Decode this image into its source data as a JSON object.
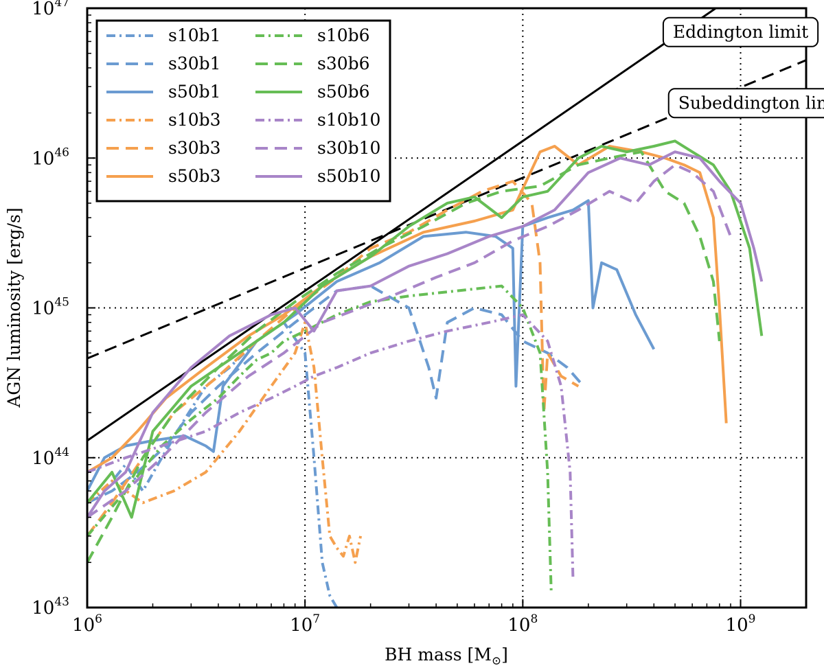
{
  "chart_data": {
    "type": "line",
    "xlabel": "BH mass [M",
    "xlabel_sub": "⊙",
    "xlabel_end": "]",
    "ylabel": "AGN luminosity [erg/s]",
    "xscale": "log",
    "yscale": "log",
    "xlim": [
      1000000,
      2000000000
    ],
    "ylim": [
      1e+43,
      1e+47
    ],
    "grid": "dotted",
    "x_ticks": [
      {
        "value": 1000000,
        "base": "10",
        "exp": "6"
      },
      {
        "value": 10000000,
        "base": "10",
        "exp": "7"
      },
      {
        "value": 100000000,
        "base": "10",
        "exp": "8"
      },
      {
        "value": 1000000000,
        "base": "10",
        "exp": "9"
      }
    ],
    "y_ticks": [
      {
        "value": 1e+43,
        "base": "10",
        "exp": "43"
      },
      {
        "value": 1e+44,
        "base": "10",
        "exp": "44"
      },
      {
        "value": 1e+45,
        "base": "10",
        "exp": "45"
      },
      {
        "value": 1e+46,
        "base": "10",
        "exp": "46"
      },
      {
        "value": 1e+47,
        "base": "10",
        "exp": "47"
      }
    ],
    "reference_lines": [
      {
        "name": "Eddington limit",
        "style": "solid",
        "color": "#000000",
        "x": [
          1000000,
          1200000000
        ],
        "y": [
          1.3e+44,
          1.56e+47
        ]
      },
      {
        "name": "Subeddington limit",
        "style": "dashed",
        "color": "#000000",
        "x": [
          1000000,
          2000000000
        ],
        "y": [
          4.6e+44,
          4.5e+46
        ]
      }
    ],
    "legend_position": "top-left",
    "series": [
      {
        "name": "s10b1",
        "color": "#6b9bd1",
        "style": "dashdot",
        "x": [
          1000000,
          1200000,
          1500000,
          1800000,
          2200000,
          2800000,
          3500000,
          4500000,
          6000000,
          8000000,
          10000000,
          11000000,
          12000000,
          13000000,
          14000000
        ],
        "y": [
          5e+43,
          6e+43,
          9e+43,
          6e+43,
          1e+44,
          1.8e+44,
          3e+44,
          4e+44,
          6e+44,
          8e+44,
          5e+44,
          1e+44,
          2e+43,
          1.2e+43,
          1e+43
        ]
      },
      {
        "name": "s30b1",
        "color": "#6b9bd1",
        "style": "dashed",
        "x": [
          1000000,
          1300000,
          1700000,
          2300000,
          3000000,
          4000000,
          6000000,
          9000000,
          14000000,
          20000000,
          30000000,
          37000000,
          40000000,
          45000000,
          60000000,
          80000000,
          100000000,
          130000000,
          160000000,
          190000000
        ],
        "y": [
          5e+43,
          6e+43,
          8e+43,
          1.2e+44,
          2e+44,
          3e+44,
          5e+44,
          8e+44,
          1.3e+45,
          1.4e+45,
          1e+45,
          4e+44,
          2.5e+44,
          8e+44,
          1e+45,
          9e+44,
          6e+44,
          5e+44,
          4e+44,
          3e+44
        ]
      },
      {
        "name": "s50b1",
        "color": "#6b9bd1",
        "style": "solid",
        "x": [
          1000000,
          1200000,
          1500000,
          2000000,
          2800000,
          3500000,
          3800000,
          4200000,
          6000000,
          9000000,
          14000000,
          22000000,
          35000000,
          55000000,
          75000000,
          90000000,
          93000000,
          100000000,
          130000000,
          170000000,
          200000000,
          210000000,
          230000000,
          270000000,
          330000000,
          400000000
        ],
        "y": [
          6e+43,
          1e+44,
          1.2e+44,
          1.3e+44,
          1.4e+44,
          1.2e+44,
          1.1e+44,
          3e+44,
          6e+44,
          9e+44,
          1.5e+45,
          2e+45,
          3e+45,
          3.2e+45,
          3e+45,
          2.5e+45,
          3e+44,
          3.5e+45,
          4e+45,
          4.5e+45,
          5.2e+45,
          1e+45,
          2e+45,
          1.8e+45,
          9e+44,
          5.3e+44
        ]
      },
      {
        "name": "s10b3",
        "color": "#f5a04e",
        "style": "dashdot",
        "x": [
          1000000,
          1300000,
          1800000,
          2500000,
          3500000,
          5000000,
          7000000,
          9000000,
          10000000,
          11000000,
          12000000,
          13000000,
          14000000,
          15000000,
          16000000,
          17000000,
          18000000
        ],
        "y": [
          5e+43,
          7e+43,
          5e+43,
          6e+43,
          8e+43,
          1.5e+44,
          3e+44,
          5e+44,
          8e+44,
          4e+44,
          1e+44,
          3e+43,
          2.5e+43,
          2.2e+43,
          3e+43,
          2e+43,
          3e+43
        ]
      },
      {
        "name": "s30b3",
        "color": "#f5a04e",
        "style": "dashed",
        "x": [
          1000000,
          1300000,
          1800000,
          2500000,
          4000000,
          6000000,
          9000000,
          14000000,
          20000000,
          30000000,
          45000000,
          65000000,
          90000000,
          110000000,
          120000000,
          125000000,
          130000000,
          150000000,
          180000000
        ],
        "y": [
          3e+43,
          5e+43,
          1e+44,
          2e+44,
          3.5e+44,
          6e+44,
          1e+45,
          1.6e+45,
          2.5e+45,
          3.2e+45,
          4.5e+45,
          6e+45,
          7e+45,
          5e+45,
          2e+45,
          2e+44,
          5e+44,
          3.5e+44,
          3e+44
        ]
      },
      {
        "name": "s50b3",
        "color": "#f5a04e",
        "style": "solid",
        "x": [
          1000000,
          1300000,
          1700000,
          2300000,
          3500000,
          5500000,
          8000000,
          12000000,
          20000000,
          35000000,
          60000000,
          90000000,
          120000000,
          140000000,
          180000000,
          250000000,
          350000000,
          450000000,
          550000000,
          650000000,
          750000000,
          800000000,
          860000000
        ],
        "y": [
          8e+43,
          1e+44,
          1.5e+44,
          2.5e+44,
          4e+44,
          6.5e+44,
          9e+44,
          1.4e+45,
          2.2e+45,
          3.2e+45,
          3.8e+45,
          4.5e+45,
          1.1e+46,
          1.2e+46,
          9e+45,
          1.2e+46,
          1.1e+46,
          1e+46,
          9e+45,
          8e+45,
          4e+45,
          1e+45,
          1.7e+44
        ]
      },
      {
        "name": "s10b6",
        "color": "#66bd55",
        "style": "dashdot",
        "x": [
          1000000,
          1500000,
          2200000,
          3000000,
          4000000,
          5000000,
          6000000,
          7000000,
          8000000,
          10000000,
          14000000,
          20000000,
          30000000,
          50000000,
          80000000,
          100000000,
          120000000,
          130000000,
          135000000
        ],
        "y": [
          3e+43,
          6e+43,
          1.2e+44,
          1.8e+44,
          2.5e+44,
          3.5e+44,
          4.5e+44,
          5e+44,
          6e+44,
          7e+44,
          9e+44,
          1.1e+45,
          1.2e+45,
          1.3e+45,
          1.4e+45,
          1e+45,
          5e+44,
          8e+43,
          1.3e+43
        ]
      },
      {
        "name": "s30b6",
        "color": "#66bd55",
        "style": "dashed",
        "x": [
          1000000,
          1300000,
          1800000,
          2500000,
          4000000,
          6000000,
          9000000,
          14000000,
          22000000,
          35000000,
          55000000,
          80000000,
          120000000,
          180000000,
          250000000,
          350000000,
          450000000,
          550000000,
          650000000,
          750000000,
          800000000
        ],
        "y": [
          2e+43,
          4e+43,
          1e+44,
          2e+44,
          4e+44,
          7e+44,
          1.1e+45,
          1.7e+45,
          2.5e+45,
          3.5e+45,
          5e+45,
          6e+45,
          6.5e+45,
          9e+45,
          1e+46,
          1.1e+46,
          6e+45,
          5e+45,
          3e+45,
          1.5e+45,
          6e+44
        ]
      },
      {
        "name": "s50b6",
        "color": "#66bd55",
        "style": "solid",
        "x": [
          1000000,
          1300000,
          1600000,
          2000000,
          3000000,
          5000000,
          8000000,
          12000000,
          20000000,
          30000000,
          45000000,
          60000000,
          80000000,
          100000000,
          130000000,
          180000000,
          230000000,
          300000000,
          400000000,
          500000000,
          600000000,
          750000000,
          900000000,
          1100000000,
          1250000000
        ],
        "y": [
          5e+43,
          8e+43,
          4e+43,
          1.5e+44,
          3e+44,
          5e+44,
          8e+44,
          1.4e+45,
          2.2e+45,
          3.5e+45,
          5e+45,
          5.5e+45,
          4e+45,
          5.5e+45,
          6e+45,
          1e+46,
          1.2e+46,
          1.1e+46,
          1.2e+46,
          1.3e+46,
          1.1e+46,
          9e+45,
          6e+45,
          2.5e+45,
          6.5e+44
        ]
      },
      {
        "name": "s10b10",
        "color": "#a885c8",
        "style": "dashdot",
        "x": [
          1000000,
          1500000,
          2200000,
          3500000,
          5000000,
          7000000,
          9000000,
          11000000,
          14000000,
          20000000,
          30000000,
          45000000,
          70000000,
          100000000,
          130000000,
          150000000,
          165000000,
          170000000
        ],
        "y": [
          8e+43,
          1e+44,
          1.2e+44,
          1.5e+44,
          2e+44,
          2.5e+44,
          3e+44,
          3.5e+44,
          4e+44,
          5e+44,
          6e+44,
          7e+44,
          8e+44,
          9e+44,
          6e+44,
          3e+44,
          8e+43,
          1.6e+43
        ]
      },
      {
        "name": "s30b10",
        "color": "#a885c8",
        "style": "dashed",
        "x": [
          1000000,
          1500000,
          2200000,
          3500000,
          5500000,
          8000000,
          12000000,
          18000000,
          25000000,
          40000000,
          60000000,
          90000000,
          130000000,
          180000000,
          250000000,
          330000000,
          400000000,
          500000000,
          600000000,
          750000000,
          900000000
        ],
        "y": [
          4e+43,
          6e+43,
          1e+44,
          2e+44,
          3.5e+44,
          5e+44,
          8e+44,
          1e+45,
          1.2e+45,
          1.6e+45,
          2e+45,
          2.8e+45,
          3.5e+45,
          4.5e+45,
          6e+45,
          5e+45,
          7e+45,
          9e+45,
          8e+45,
          6e+45,
          3e+45
        ]
      },
      {
        "name": "s50b10",
        "color": "#a885c8",
        "style": "solid",
        "x": [
          1000000,
          1200000,
          1500000,
          2000000,
          3000000,
          4500000,
          7000000,
          9000000,
          11000000,
          14000000,
          20000000,
          30000000,
          45000000,
          70000000,
          100000000,
          140000000,
          200000000,
          280000000,
          380000000,
          500000000,
          650000000,
          800000000,
          1000000000,
          1150000000,
          1250000000
        ],
        "y": [
          4e+43,
          6e+43,
          8e+43,
          2e+44,
          4e+44,
          6.5e+44,
          9e+44,
          1e+45,
          7e+44,
          1.3e+45,
          1.4e+45,
          1.9e+45,
          2.3e+45,
          3e+45,
          3.5e+45,
          4.5e+45,
          8e+45,
          1e+46,
          9e+45,
          1.1e+46,
          1e+46,
          7e+45,
          5e+45,
          2.5e+45,
          1.5e+45
        ]
      }
    ],
    "annotations": [
      {
        "text": "Eddington limit",
        "x": 1000000000,
        "y": 7e+46
      },
      {
        "text": "Subeddington limit",
        "x": 1250000000,
        "y": 2.35e+46
      }
    ]
  }
}
